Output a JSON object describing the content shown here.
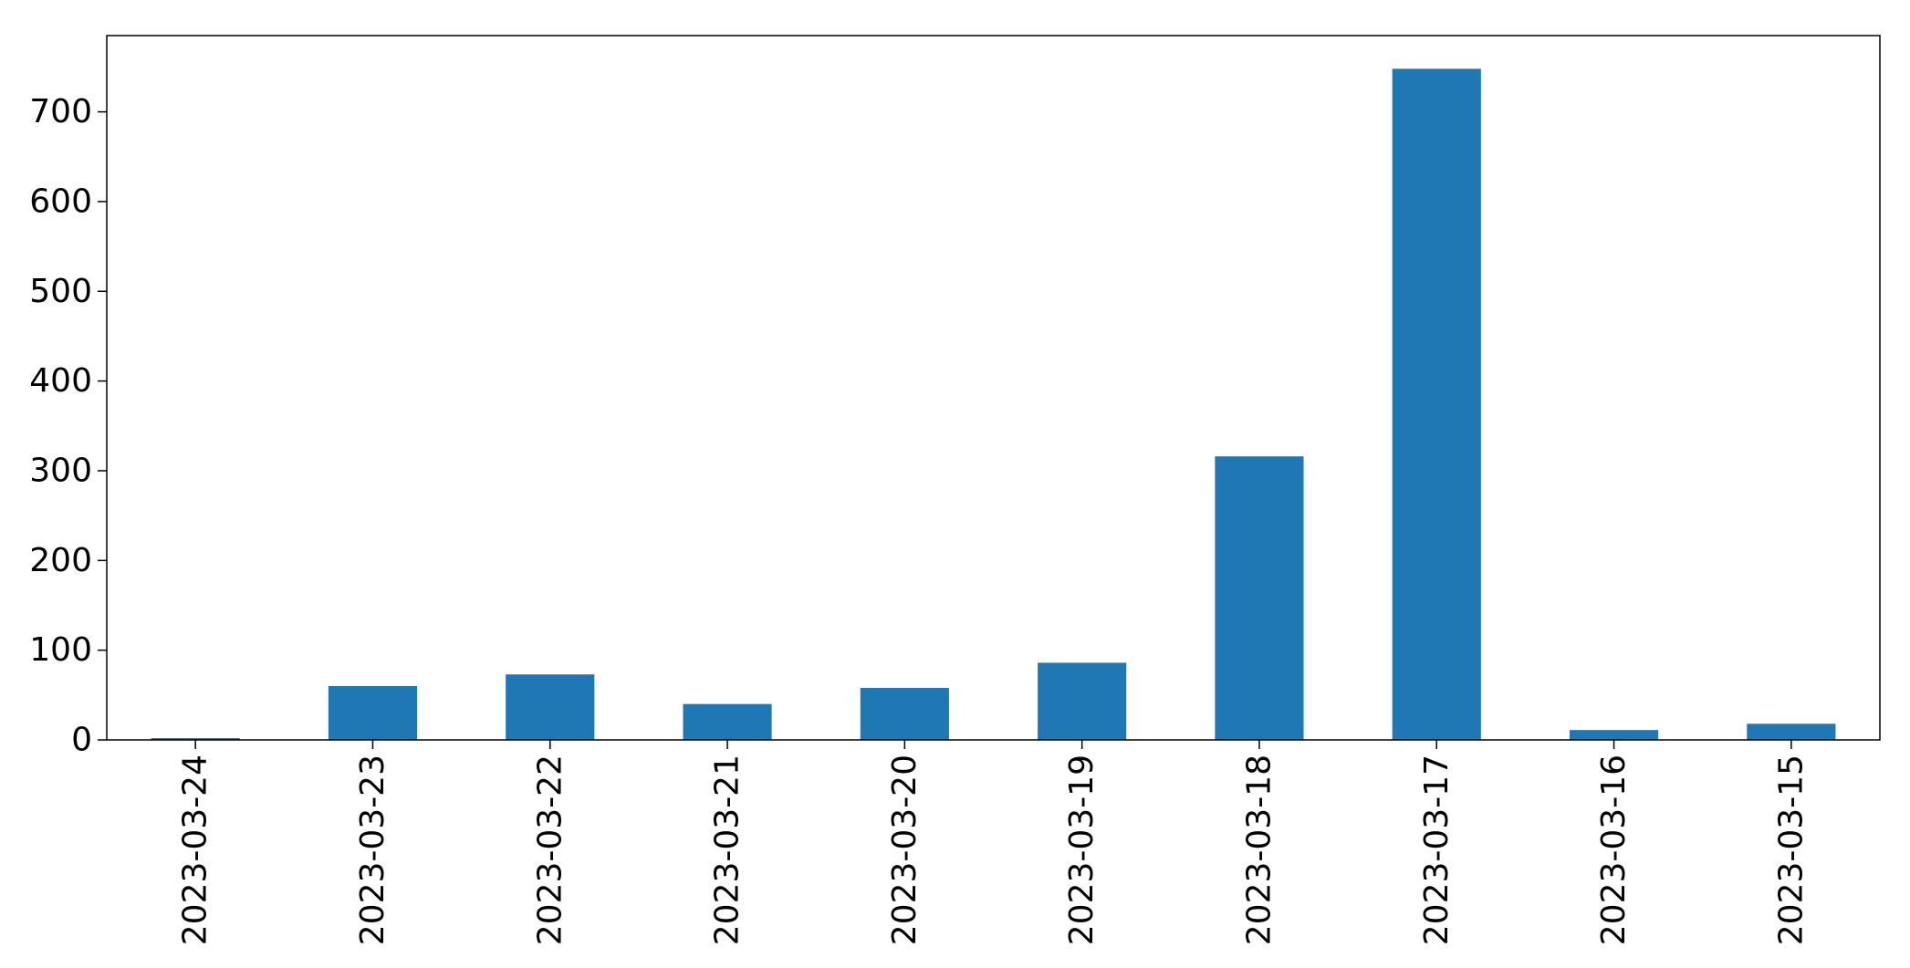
{
  "chart_data": {
    "type": "bar",
    "title": "",
    "xlabel": "",
    "ylabel": "",
    "categories": [
      "2023-03-24",
      "2023-03-23",
      "2023-03-22",
      "2023-03-21",
      "2023-03-20",
      "2023-03-19",
      "2023-03-18",
      "2023-03-17",
      "2023-03-16",
      "2023-03-15"
    ],
    "values": [
      2,
      60,
      73,
      40,
      58,
      86,
      316,
      748,
      11,
      18
    ],
    "ylim": [
      0,
      785
    ],
    "yticks": [
      0,
      100,
      200,
      300,
      400,
      500,
      600,
      700
    ],
    "yticklabels": [
      "0",
      "100",
      "200",
      "300",
      "400",
      "500",
      "600",
      "700"
    ],
    "bar_color": "#1f77b4",
    "grid": false,
    "legend": false
  }
}
